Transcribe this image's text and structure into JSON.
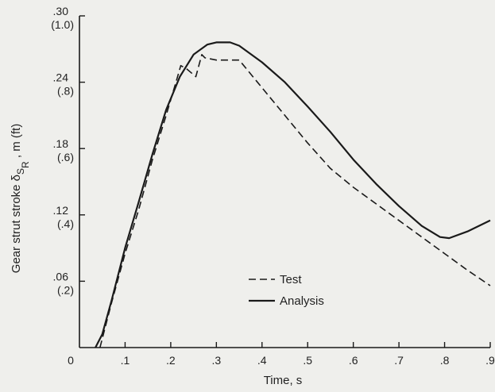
{
  "chart_data": {
    "type": "line",
    "xlabel": "Time, s",
    "ylabel_parts": {
      "prefix": "Gear strut stroke δ",
      "sub1": "S",
      "sub2": "R",
      "suffix": " , m (ft)"
    },
    "xlim": [
      0,
      0.9
    ],
    "ylim": [
      0,
      0.3
    ],
    "x_ticks": [
      {
        "value": 0,
        "label": "0"
      },
      {
        "value": 0.1,
        "label": ".1"
      },
      {
        "value": 0.2,
        "label": ".2"
      },
      {
        "value": 0.3,
        "label": ".3"
      },
      {
        "value": 0.4,
        "label": ".4"
      },
      {
        "value": 0.5,
        "label": ".5"
      },
      {
        "value": 0.6,
        "label": ".6"
      },
      {
        "value": 0.7,
        "label": ".7"
      },
      {
        "value": 0.8,
        "label": ".8"
      },
      {
        "value": 0.9,
        "label": ".9"
      }
    ],
    "y_ticks": [
      {
        "value": 0.06,
        "label": ".06",
        "label2": "(.2)"
      },
      {
        "value": 0.12,
        "label": ".12",
        "label2": "(.4)"
      },
      {
        "value": 0.18,
        "label": ".18",
        "label2": "(.6)"
      },
      {
        "value": 0.24,
        "label": ".24",
        "label2": "(.8)"
      },
      {
        "value": 0.3,
        "label": ".30",
        "label2": "(1.0)"
      }
    ],
    "grid": false,
    "legend_position": "lower-center",
    "series": [
      {
        "name": "Test",
        "style": "dashed",
        "color": "#1a1a1a",
        "points": [
          [
            0.045,
            0.0
          ],
          [
            0.05,
            0.008
          ],
          [
            0.07,
            0.04
          ],
          [
            0.1,
            0.085
          ],
          [
            0.13,
            0.125
          ],
          [
            0.16,
            0.17
          ],
          [
            0.19,
            0.21
          ],
          [
            0.215,
            0.245
          ],
          [
            0.222,
            0.255
          ],
          [
            0.235,
            0.252
          ],
          [
            0.255,
            0.245
          ],
          [
            0.268,
            0.265
          ],
          [
            0.275,
            0.262
          ],
          [
            0.3,
            0.26
          ],
          [
            0.35,
            0.26
          ],
          [
            0.4,
            0.235
          ],
          [
            0.45,
            0.21
          ],
          [
            0.5,
            0.185
          ],
          [
            0.55,
            0.162
          ],
          [
            0.6,
            0.145
          ],
          [
            0.65,
            0.13
          ],
          [
            0.7,
            0.115
          ],
          [
            0.75,
            0.1
          ],
          [
            0.8,
            0.085
          ],
          [
            0.85,
            0.07
          ],
          [
            0.9,
            0.056
          ]
        ]
      },
      {
        "name": "Analysis",
        "style": "solid",
        "color": "#1a1a1a",
        "points": [
          [
            0.035,
            0.0
          ],
          [
            0.05,
            0.012
          ],
          [
            0.07,
            0.042
          ],
          [
            0.1,
            0.09
          ],
          [
            0.13,
            0.132
          ],
          [
            0.16,
            0.175
          ],
          [
            0.19,
            0.215
          ],
          [
            0.22,
            0.245
          ],
          [
            0.25,
            0.265
          ],
          [
            0.28,
            0.274
          ],
          [
            0.3,
            0.276
          ],
          [
            0.33,
            0.276
          ],
          [
            0.35,
            0.273
          ],
          [
            0.4,
            0.258
          ],
          [
            0.45,
            0.24
          ],
          [
            0.5,
            0.218
          ],
          [
            0.55,
            0.195
          ],
          [
            0.6,
            0.17
          ],
          [
            0.65,
            0.148
          ],
          [
            0.7,
            0.128
          ],
          [
            0.75,
            0.11
          ],
          [
            0.79,
            0.1
          ],
          [
            0.81,
            0.099
          ],
          [
            0.85,
            0.105
          ],
          [
            0.9,
            0.115
          ]
        ]
      }
    ]
  }
}
